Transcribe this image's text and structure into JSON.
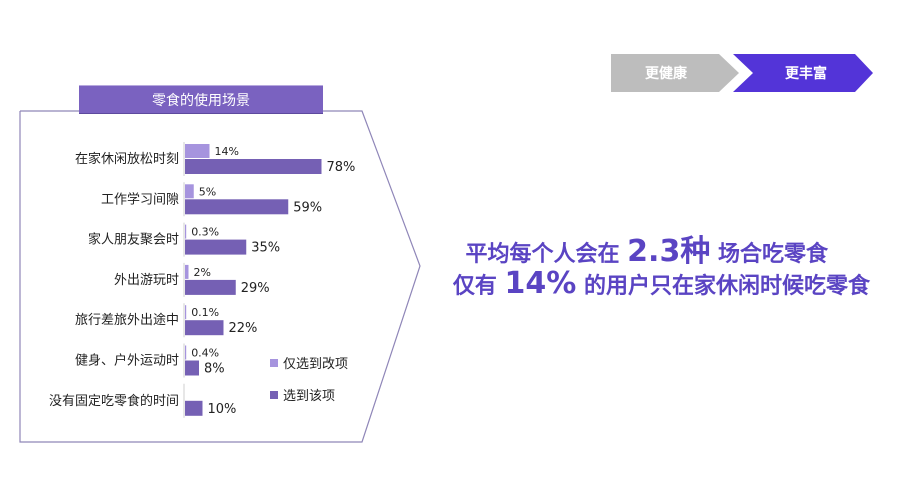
{
  "panel": {
    "title": "零食的使用场景"
  },
  "stepper": {
    "steps": [
      "更健康",
      "更丰富"
    ],
    "active_index": 1
  },
  "headline": {
    "line1": {
      "pre": "平均每个人会在 ",
      "highlight": "2.3种",
      "post": " 场合吃零食"
    },
    "line2": {
      "pre": "仅有 ",
      "highlight": "14%",
      "post": " 的用户只在家休闲时候吃零食"
    }
  },
  "colors": {
    "only": "#a694de",
    "selected": "#7560b4",
    "accent": "#5a44c3",
    "step_inactive": "#bdbdbd",
    "step_active": "#5334d8"
  },
  "chart_data": {
    "type": "bar",
    "orientation": "horizontal",
    "categories": [
      "在家休闲放松时刻",
      "工作学习间隙",
      "家人朋友聚会时",
      "外出游玩时",
      "旅行差旅外出途中",
      "健身、户外运动时",
      "没有固定吃零食的时间"
    ],
    "series": [
      {
        "name": "仅选到改项",
        "values": [
          14,
          5,
          0.3,
          2,
          0.1,
          0.4,
          null
        ],
        "labels": [
          "14%",
          "5%",
          "0.3%",
          "2%",
          "0.1%",
          "0.4%",
          ""
        ]
      },
      {
        "name": "选到该项",
        "values": [
          78,
          59,
          35,
          29,
          22,
          8,
          10
        ],
        "labels": [
          "78%",
          "59%",
          "35%",
          "29%",
          "22%",
          "8%",
          "10%"
        ]
      }
    ],
    "legend_position": "bottom-right",
    "grid": false
  }
}
